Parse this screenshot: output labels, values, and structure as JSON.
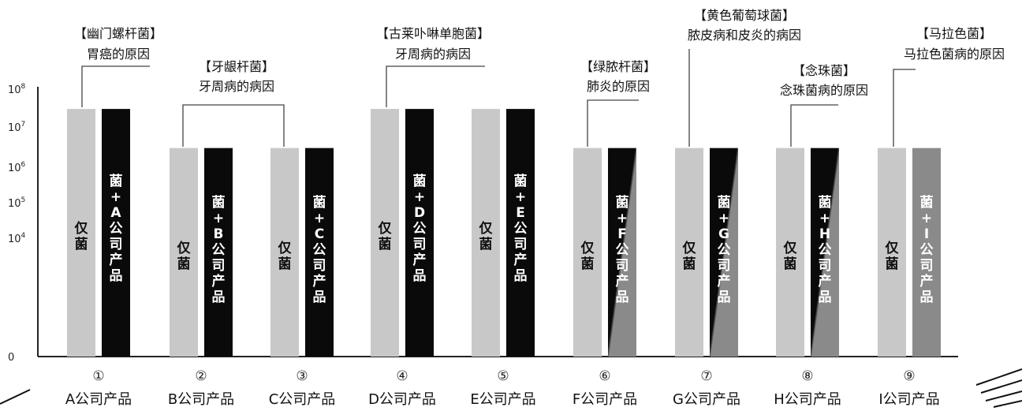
{
  "chart_data": {
    "type": "bar",
    "yscale": "log",
    "ylabel": "",
    "yticks": [
      "0",
      "10^4",
      "10^5",
      "10^6",
      "10^7",
      "10^8"
    ],
    "categories": [
      {
        "number": "①",
        "label": "A公司产品"
      },
      {
        "number": "②",
        "label": "B公司产品"
      },
      {
        "number": "③",
        "label": "C公司产品"
      },
      {
        "number": "④",
        "label": "D公司产品"
      },
      {
        "number": "⑤",
        "label": "E公司产品"
      },
      {
        "number": "⑥",
        "label": "F公司产品"
      },
      {
        "number": "⑦",
        "label": "G公司产品"
      },
      {
        "number": "⑧",
        "label": "H公司产品"
      },
      {
        "number": "⑨",
        "label": "I公司产品"
      }
    ],
    "series": [
      {
        "name": "仅菌",
        "bar_label": "仅菌",
        "values": [
          30000000,
          3000000,
          3000000,
          30000000,
          30000000,
          3000000,
          3000000,
          3000000,
          3000000
        ]
      },
      {
        "name": "菌+公司产品",
        "bar_labels": [
          "菌+A公司产品",
          "菌+B公司产品",
          "菌+C公司产品",
          "菌+D公司产品",
          "菌+E公司产品",
          "菌+F公司产品",
          "菌+G公司产品",
          "菌+H公司产品",
          "菌+I公司产品"
        ],
        "values": [
          30000000,
          3000000,
          3000000,
          30000000,
          30000000,
          3000000,
          3000000,
          3000000,
          3000000
        ],
        "styles": [
          "black",
          "black",
          "black",
          "black",
          "black",
          "black-to-gray",
          "black-to-gray",
          "black-to-gray",
          "gray"
        ]
      }
    ],
    "annotations": [
      {
        "title": "【幽门螺杆菌】",
        "subtitle": "胃癌的原因",
        "categories": [
          1
        ]
      },
      {
        "title": "【牙龈杆菌】",
        "subtitle": "牙周病的病因",
        "categories": [
          2,
          3
        ]
      },
      {
        "title": "【古莱卟啉单胞菌】",
        "subtitle": "牙周病的病因",
        "categories": [
          4,
          5
        ]
      },
      {
        "title": "【绿脓杆菌】",
        "subtitle": "肺炎的原因",
        "categories": [
          6
        ]
      },
      {
        "title": "【黄色葡萄球菌】",
        "subtitle": "脓皮病和皮炎的病因",
        "categories": [
          7
        ]
      },
      {
        "title": "【念珠菌】",
        "subtitle": "念珠菌病的原因",
        "categories": [
          8
        ]
      },
      {
        "title": "【马拉色菌】",
        "subtitle": "马拉色菌病的原因",
        "categories": [
          9
        ]
      }
    ],
    "colors": {
      "control": "#c8c8c8",
      "treated": "#0a0a0a",
      "treated_alt": "#8a8a8a",
      "axis": "#222222"
    },
    "grid": false,
    "legend": "none"
  }
}
